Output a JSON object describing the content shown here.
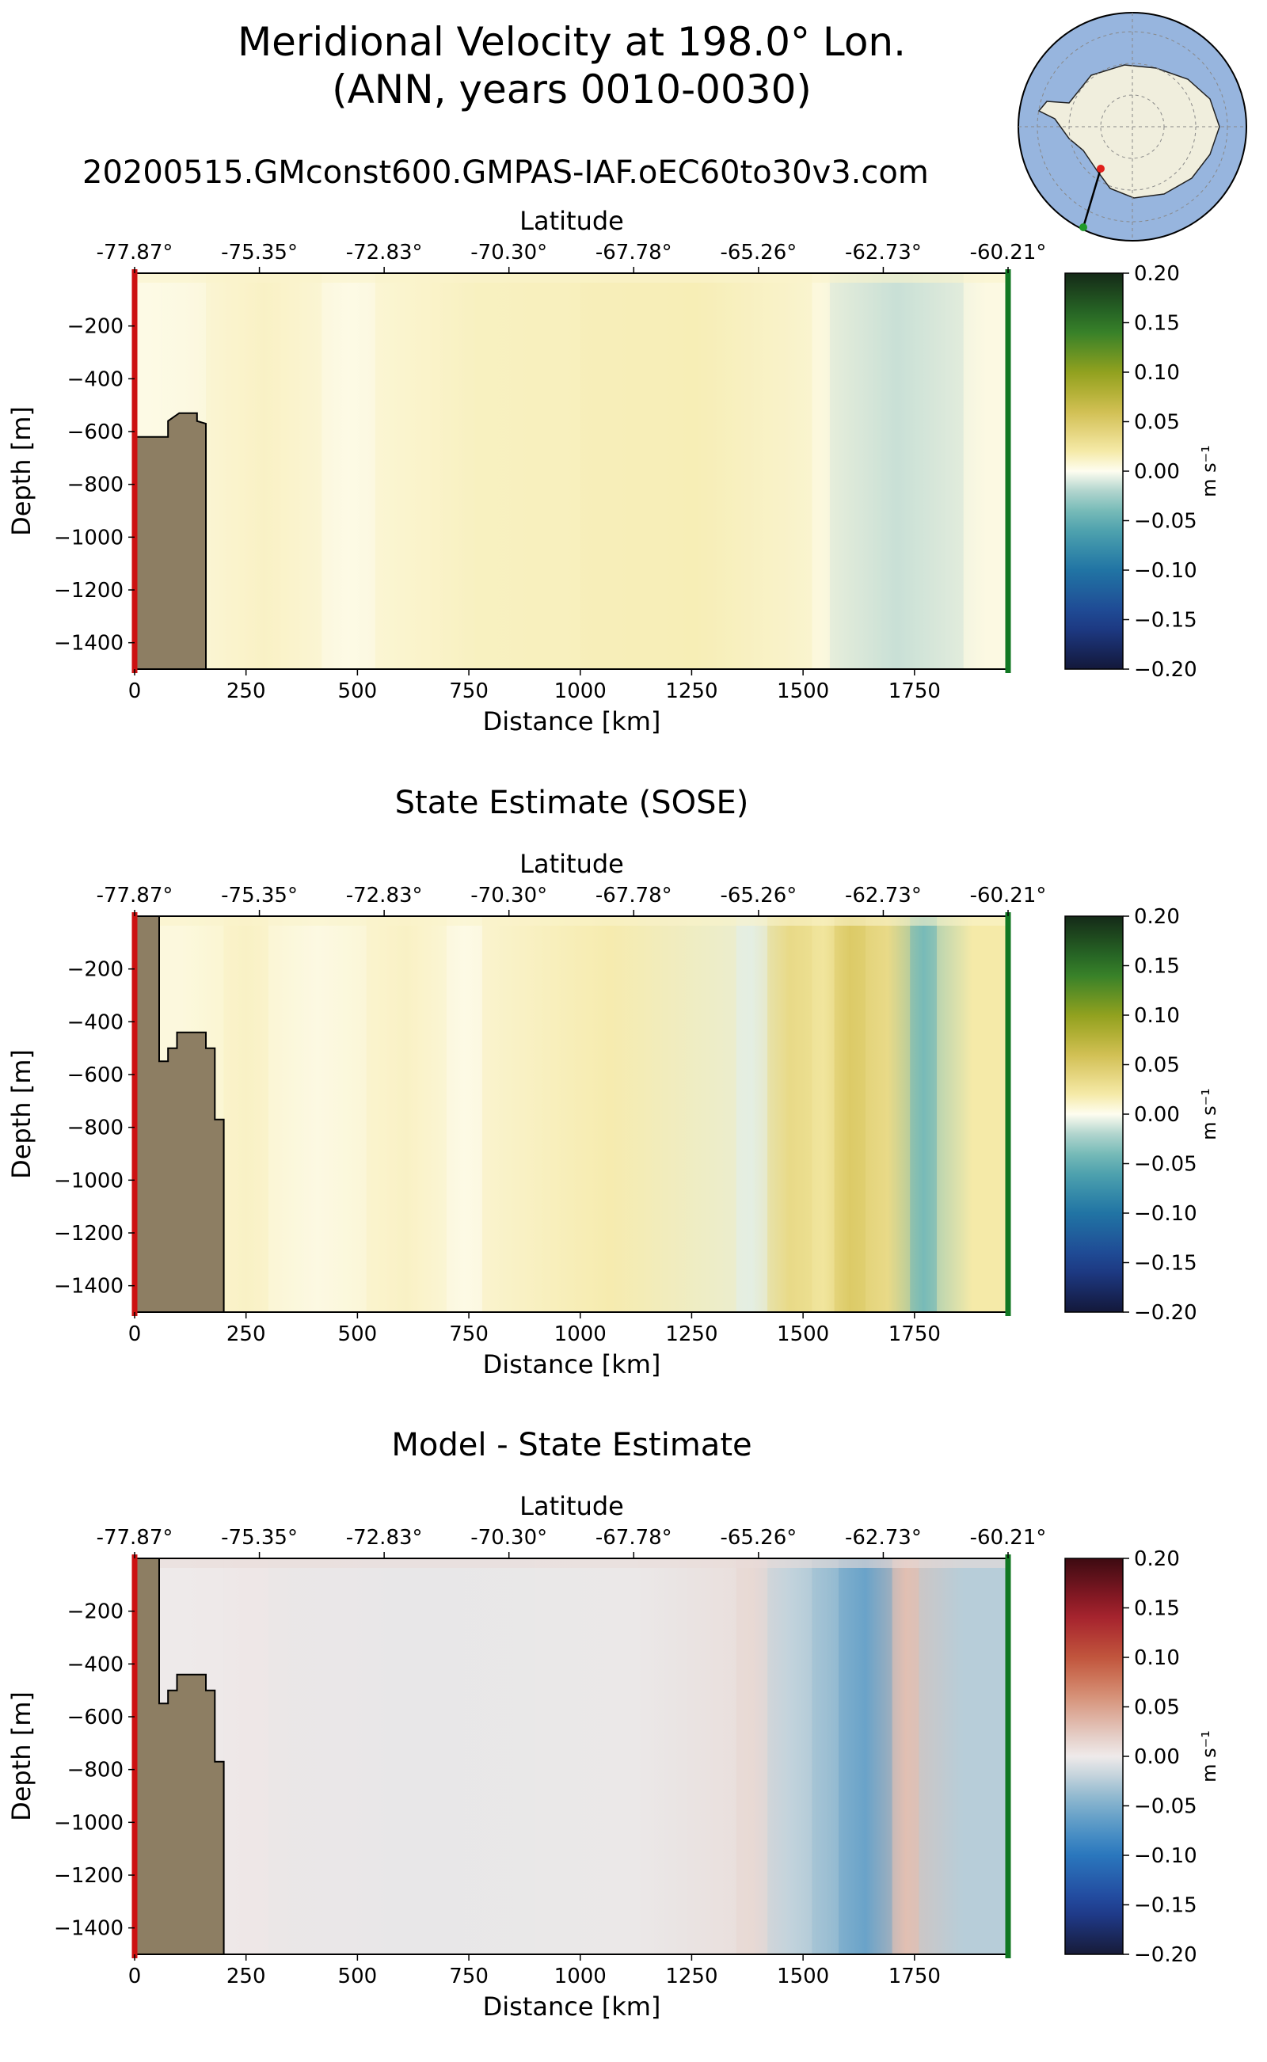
{
  "figure": {
    "title_line1": "Meridional Velocity at 198.0° Lon.",
    "title_line2": "(ANN, years 0010-0030)",
    "subtitle": "20200515.GMconst600.GMPAS-IAF.oEC60to30v3.com"
  },
  "colors": {
    "land": "#8d7e63",
    "start_marker": "#cc1111",
    "end_marker": "#117722",
    "inset_ocean": "#97b5de",
    "inset_land": "#f0eedd"
  },
  "chart_data": [
    {
      "type": "heatmap",
      "title": "",
      "xlabel": "Distance [km]",
      "ylabel": "Depth [m]",
      "top_xlabel": "Latitude",
      "xlim": [
        0,
        1960
      ],
      "ylim": [
        -1500,
        0
      ],
      "x_ticks": [
        "0",
        "250",
        "500",
        "750",
        "1000",
        "1250",
        "1500",
        "1750"
      ],
      "y_ticks": [
        "−200",
        "−400",
        "−600",
        "−800",
        "−1000",
        "−1200",
        "−1400"
      ],
      "lat_ticks": [
        "-77.87°",
        "-75.35°",
        "-72.83°",
        "-70.30°",
        "-67.78°",
        "-65.26°",
        "-62.73°",
        "-60.21°"
      ],
      "colorbar": {
        "label": "m s⁻¹",
        "range": [
          -0.2,
          0.2
        ],
        "ticks": [
          "0.20",
          "0.15",
          "0.10",
          "0.05",
          "0.00",
          "−0.05",
          "−0.10",
          "−0.15",
          "−0.20"
        ],
        "colormap": "delta"
      },
      "bathymetry": [
        [
          0,
          -620
        ],
        [
          75,
          -620
        ],
        [
          75,
          -560
        ],
        [
          100,
          -530
        ],
        [
          140,
          -530
        ],
        [
          140,
          -560
        ],
        [
          160,
          -570
        ],
        [
          160,
          -1500
        ]
      ],
      "velocity_columns": [
        {
          "x": [
            0,
            60
          ],
          "value": 0.003
        },
        {
          "x": [
            60,
            160
          ],
          "value": 0.004
        },
        {
          "x": [
            160,
            420
          ],
          "value": 0.012
        },
        {
          "x": [
            420,
            540
          ],
          "value": 0.003
        },
        {
          "x": [
            540,
            1000
          ],
          "value": 0.013
        },
        {
          "x": [
            1000,
            1520
          ],
          "value": 0.016
        },
        {
          "x": [
            1520,
            1560
          ],
          "value": 0.005
        },
        {
          "x": [
            1560,
            1860
          ],
          "value": -0.012
        },
        {
          "x": [
            1860,
            1960
          ],
          "value": 0.004
        }
      ]
    },
    {
      "type": "heatmap",
      "title": "State Estimate (SOSE)",
      "xlabel": "Distance [km]",
      "ylabel": "Depth [m]",
      "top_xlabel": "Latitude",
      "xlim": [
        0,
        1960
      ],
      "ylim": [
        -1500,
        0
      ],
      "x_ticks": [
        "0",
        "250",
        "500",
        "750",
        "1000",
        "1250",
        "1500",
        "1750"
      ],
      "y_ticks": [
        "−200",
        "−400",
        "−600",
        "−800",
        "−1000",
        "−1200",
        "−1400"
      ],
      "lat_ticks": [
        "-77.87°",
        "-75.35°",
        "-72.83°",
        "-70.30°",
        "-67.78°",
        "-65.26°",
        "-62.73°",
        "-60.21°"
      ],
      "colorbar": {
        "label": "m s⁻¹",
        "range": [
          -0.2,
          0.2
        ],
        "ticks": [
          "0.20",
          "0.15",
          "0.10",
          "0.05",
          "0.00",
          "−0.05",
          "−0.10",
          "−0.15",
          "−0.20"
        ],
        "colormap": "delta"
      },
      "bathymetry": [
        [
          0,
          0
        ],
        [
          55,
          0
        ],
        [
          55,
          -550
        ],
        [
          75,
          -550
        ],
        [
          75,
          -500
        ],
        [
          95,
          -500
        ],
        [
          95,
          -440
        ],
        [
          160,
          -440
        ],
        [
          160,
          -500
        ],
        [
          180,
          -500
        ],
        [
          180,
          -770
        ],
        [
          200,
          -770
        ],
        [
          200,
          -1500
        ]
      ],
      "velocity_columns": [
        {
          "x": [
            0,
            200
          ],
          "value": 0.005
        },
        {
          "x": [
            200,
            300
          ],
          "value": 0.012
        },
        {
          "x": [
            300,
            520
          ],
          "value": 0.004
        },
        {
          "x": [
            520,
            700
          ],
          "value": 0.012
        },
        {
          "x": [
            700,
            780
          ],
          "value": 0.003
        },
        {
          "x": [
            780,
            1350
          ],
          "value": 0.018
        },
        {
          "x": [
            1350,
            1420
          ],
          "value": -0.006
        },
        {
          "x": [
            1420,
            1520
          ],
          "value": 0.035
        },
        {
          "x": [
            1520,
            1570
          ],
          "value": 0.025
        },
        {
          "x": [
            1570,
            1640
          ],
          "value": 0.05
        },
        {
          "x": [
            1640,
            1740
          ],
          "value": 0.035
        },
        {
          "x": [
            1740,
            1800
          ],
          "value": -0.04
        },
        {
          "x": [
            1800,
            1960
          ],
          "value": 0.02
        }
      ]
    },
    {
      "type": "heatmap",
      "title": "Model - State Estimate",
      "xlabel": "Distance [km]",
      "ylabel": "Depth [m]",
      "top_xlabel": "Latitude",
      "xlim": [
        0,
        1960
      ],
      "ylim": [
        -1500,
        0
      ],
      "x_ticks": [
        "0",
        "250",
        "500",
        "750",
        "1000",
        "1250",
        "1500",
        "1750"
      ],
      "y_ticks": [
        "−200",
        "−400",
        "−600",
        "−800",
        "−1000",
        "−1200",
        "−1400"
      ],
      "lat_ticks": [
        "-77.87°",
        "-75.35°",
        "-72.83°",
        "-70.30°",
        "-67.78°",
        "-65.26°",
        "-62.73°",
        "-60.21°"
      ],
      "colorbar": {
        "label": "m s⁻¹",
        "range": [
          -0.2,
          0.2
        ],
        "ticks": [
          "0.20",
          "0.15",
          "0.10",
          "0.05",
          "0.00",
          "−0.05",
          "−0.10",
          "−0.15",
          "−0.20"
        ],
        "colormap": "balance"
      },
      "bathymetry": [
        [
          0,
          0
        ],
        [
          55,
          0
        ],
        [
          55,
          -550
        ],
        [
          75,
          -550
        ],
        [
          75,
          -500
        ],
        [
          95,
          -500
        ],
        [
          95,
          -440
        ],
        [
          160,
          -440
        ],
        [
          160,
          -500
        ],
        [
          180,
          -500
        ],
        [
          180,
          -770
        ],
        [
          200,
          -770
        ],
        [
          200,
          -1500
        ]
      ],
      "velocity_columns": [
        {
          "x": [
            0,
            200
          ],
          "value": 0.0
        },
        {
          "x": [
            200,
            300
          ],
          "value": 0.002
        },
        {
          "x": [
            300,
            900
          ],
          "value": -0.003
        },
        {
          "x": [
            900,
            1350
          ],
          "value": -0.002
        },
        {
          "x": [
            1350,
            1420
          ],
          "value": 0.012
        },
        {
          "x": [
            1420,
            1520
          ],
          "value": -0.02
        },
        {
          "x": [
            1520,
            1580
          ],
          "value": -0.035
        },
        {
          "x": [
            1580,
            1700
          ],
          "value": -0.06
        },
        {
          "x": [
            1700,
            1760
          ],
          "value": 0.03
        },
        {
          "x": [
            1760,
            1960
          ],
          "value": -0.025
        }
      ]
    }
  ]
}
